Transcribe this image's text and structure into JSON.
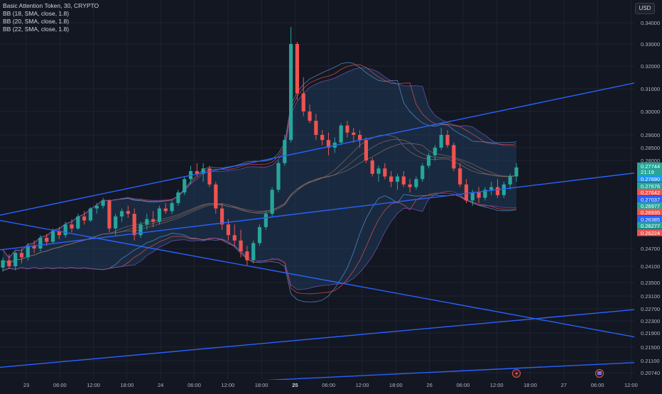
{
  "header": {
    "title": "Basic Attention Token, 30, CRYPTO",
    "indicators": [
      "BB (18, SMA, close, 1.8)",
      "BB (20, SMA, close, 1.8)",
      "BB (22, SMA, close, 1.8)"
    ],
    "currency": "USD"
  },
  "colors": {
    "background": "#131722",
    "grid": "#1f2330",
    "up": "#26a69a",
    "down": "#ef5350",
    "band_fill": "#1f3b5a",
    "trendline": "#2962ff"
  },
  "chart_data": {
    "type": "candlestick",
    "title": "Basic Attention Token, 30, CRYPTO",
    "y_ticks": [
      "0.34000",
      "0.33000",
      "0.32000",
      "0.31000",
      "0.30000",
      "0.29000",
      "0.28500",
      "0.28000",
      "0.24700",
      "0.24100",
      "0.23500",
      "0.23100",
      "0.22700",
      "0.22300",
      "0.21900",
      "0.21500",
      "0.21100",
      "0.20740"
    ],
    "x_ticks": [
      "23",
      "06:00",
      "12:00",
      "18:00",
      "24",
      "06:00",
      "12:00",
      "18:00",
      "25",
      "06:00",
      "12:00",
      "18:00",
      "26",
      "06:00",
      "12:00",
      "18:00",
      "27",
      "06:00",
      "12:00"
    ],
    "ylim": [
      0.205,
      0.345
    ],
    "last_price": "0.27744",
    "countdown": "21:19",
    "price_labels": [
      {
        "value": "0.27690",
        "color": "#2196f3"
      },
      {
        "value": "0.27676",
        "color": "#26a69a"
      },
      {
        "value": "0.27642",
        "color": "#ef5350"
      },
      {
        "value": "0.27037",
        "color": "#2962ff"
      },
      {
        "value": "0.26977",
        "color": "#26a69a"
      },
      {
        "value": "0.26935",
        "color": "#ef5350"
      },
      {
        "value": "0.26385",
        "color": "#2962ff"
      },
      {
        "value": "0.26277",
        "color": "#26a69a"
      },
      {
        "value": "0.26224",
        "color": "#ef5350"
      }
    ],
    "candles": [
      [
        0.2405,
        0.244,
        0.239,
        0.243
      ],
      [
        0.243,
        0.245,
        0.24,
        0.241
      ],
      [
        0.241,
        0.246,
        0.2395,
        0.2455
      ],
      [
        0.2455,
        0.247,
        0.242,
        0.244
      ],
      [
        0.244,
        0.249,
        0.243,
        0.248
      ],
      [
        0.248,
        0.25,
        0.2455,
        0.247
      ],
      [
        0.247,
        0.252,
        0.246,
        0.251
      ],
      [
        0.251,
        0.2525,
        0.248,
        0.2495
      ],
      [
        0.2495,
        0.2545,
        0.249,
        0.2535
      ],
      [
        0.2535,
        0.255,
        0.2505,
        0.252
      ],
      [
        0.252,
        0.257,
        0.251,
        0.256
      ],
      [
        0.256,
        0.258,
        0.253,
        0.2545
      ],
      [
        0.2545,
        0.26,
        0.254,
        0.259
      ],
      [
        0.259,
        0.261,
        0.256,
        0.2575
      ],
      [
        0.2575,
        0.2625,
        0.257,
        0.262
      ],
      [
        0.262,
        0.264,
        0.26,
        0.263
      ],
      [
        0.263,
        0.266,
        0.262,
        0.265
      ],
      [
        0.265,
        0.2655,
        0.253,
        0.2545
      ],
      [
        0.2545,
        0.26,
        0.252,
        0.259
      ],
      [
        0.259,
        0.262,
        0.257,
        0.261
      ],
      [
        0.261,
        0.263,
        0.2585,
        0.26
      ],
      [
        0.26,
        0.262,
        0.25,
        0.252
      ],
      [
        0.252,
        0.257,
        0.251,
        0.256
      ],
      [
        0.256,
        0.26,
        0.254,
        0.258
      ],
      [
        0.258,
        0.261,
        0.255,
        0.257
      ],
      [
        0.257,
        0.263,
        0.256,
        0.262
      ],
      [
        0.262,
        0.264,
        0.26,
        0.261
      ],
      [
        0.261,
        0.265,
        0.26,
        0.264
      ],
      [
        0.264,
        0.269,
        0.263,
        0.268
      ],
      [
        0.268,
        0.274,
        0.267,
        0.273
      ],
      [
        0.273,
        0.278,
        0.271,
        0.276
      ],
      [
        0.276,
        0.279,
        0.274,
        0.275
      ],
      [
        0.275,
        0.279,
        0.272,
        0.277
      ],
      [
        0.277,
        0.278,
        0.27,
        0.271
      ],
      [
        0.271,
        0.272,
        0.26,
        0.262
      ],
      [
        0.262,
        0.264,
        0.254,
        0.256
      ],
      [
        0.256,
        0.258,
        0.25,
        0.252
      ],
      [
        0.252,
        0.256,
        0.248,
        0.25
      ],
      [
        0.25,
        0.254,
        0.244,
        0.246
      ],
      [
        0.246,
        0.248,
        0.241,
        0.243
      ],
      [
        0.243,
        0.25,
        0.242,
        0.249
      ],
      [
        0.249,
        0.256,
        0.248,
        0.255
      ],
      [
        0.255,
        0.261,
        0.254,
        0.26
      ],
      [
        0.26,
        0.27,
        0.259,
        0.269
      ],
      [
        0.269,
        0.28,
        0.268,
        0.279
      ],
      [
        0.279,
        0.29,
        0.278,
        0.288
      ],
      [
        0.288,
        0.338,
        0.287,
        0.33
      ],
      [
        0.33,
        0.331,
        0.305,
        0.308
      ],
      [
        0.308,
        0.315,
        0.298,
        0.3
      ],
      [
        0.3,
        0.303,
        0.295,
        0.296
      ],
      [
        0.296,
        0.299,
        0.288,
        0.29
      ],
      [
        0.29,
        0.292,
        0.286,
        0.288
      ],
      [
        0.288,
        0.291,
        0.282,
        0.285
      ],
      [
        0.285,
        0.289,
        0.283,
        0.287
      ],
      [
        0.287,
        0.295,
        0.286,
        0.294
      ],
      [
        0.294,
        0.296,
        0.289,
        0.291
      ],
      [
        0.291,
        0.293,
        0.287,
        0.29
      ],
      [
        0.29,
        0.292,
        0.285,
        0.288
      ],
      [
        0.288,
        0.289,
        0.279,
        0.28
      ],
      [
        0.28,
        0.281,
        0.274,
        0.275
      ],
      [
        0.275,
        0.278,
        0.272,
        0.277
      ],
      [
        0.277,
        0.279,
        0.273,
        0.274
      ],
      [
        0.274,
        0.276,
        0.27,
        0.272
      ],
      [
        0.272,
        0.275,
        0.269,
        0.274
      ],
      [
        0.274,
        0.276,
        0.27,
        0.271
      ],
      [
        0.271,
        0.273,
        0.268,
        0.27
      ],
      [
        0.27,
        0.274,
        0.269,
        0.273
      ],
      [
        0.273,
        0.279,
        0.272,
        0.278
      ],
      [
        0.278,
        0.283,
        0.277,
        0.282
      ],
      [
        0.282,
        0.286,
        0.28,
        0.285
      ],
      [
        0.285,
        0.293,
        0.284,
        0.29
      ],
      [
        0.29,
        0.292,
        0.285,
        0.286
      ],
      [
        0.286,
        0.287,
        0.276,
        0.277
      ],
      [
        0.277,
        0.279,
        0.27,
        0.271
      ],
      [
        0.271,
        0.273,
        0.264,
        0.265
      ],
      [
        0.265,
        0.269,
        0.263,
        0.268
      ],
      [
        0.268,
        0.27,
        0.264,
        0.266
      ],
      [
        0.266,
        0.27,
        0.265,
        0.269
      ],
      [
        0.269,
        0.272,
        0.267,
        0.27
      ],
      [
        0.27,
        0.273,
        0.266,
        0.267
      ],
      [
        0.267,
        0.272,
        0.266,
        0.271
      ],
      [
        0.271,
        0.275,
        0.269,
        0.274
      ],
      [
        0.274,
        0.279,
        0.272,
        0.2774
      ]
    ],
    "trendlines": [
      {
        "from": [
          0,
          0.2595
        ],
        "to": [
          931,
          0.315
        ]
      },
      {
        "from": [
          0,
          0.2465
        ],
        "to": [
          931,
          0.2765
        ]
      },
      {
        "from": [
          0,
          0.2575
        ],
        "to": [
          931,
          0.2165
        ]
      },
      {
        "from": [
          0,
          0.209
        ],
        "to": [
          931,
          0.2275
        ]
      },
      {
        "from": [
          340,
          0.2048
        ],
        "to": [
          931,
          0.2108
        ]
      }
    ]
  }
}
